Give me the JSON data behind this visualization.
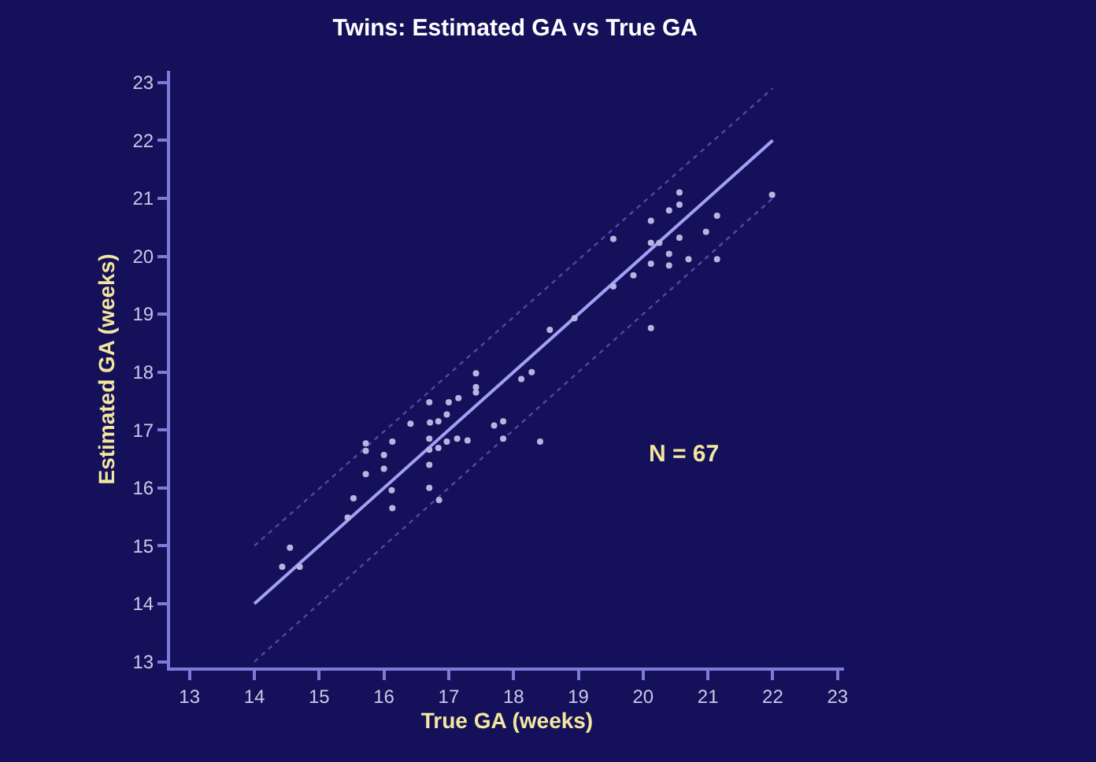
{
  "chart_data": {
    "type": "scatter",
    "title": "Twins: Estimated GA vs True GA",
    "xlabel": "True GA (weeks)",
    "ylabel": "Estimated GA (weeks)",
    "annotations": [
      "N = 67"
    ],
    "xlim": [
      12.7,
      23.1
    ],
    "ylim": [
      12.9,
      23.2
    ],
    "xticks": [
      13,
      14,
      15,
      16,
      17,
      18,
      19,
      20,
      21,
      22,
      23
    ],
    "yticks": [
      13,
      14,
      15,
      16,
      17,
      18,
      19,
      20,
      21,
      22,
      23
    ],
    "grid": false,
    "series": [
      {
        "marker": "circle",
        "color": "#b8b4e0",
        "x": [
          14.43,
          14.55,
          14.7,
          15.44,
          15.53,
          15.72,
          15.72,
          15.72,
          16.0,
          16.0,
          16.13,
          16.12,
          16.13,
          16.41,
          16.7,
          16.71,
          16.84,
          16.7,
          16.7,
          16.7,
          16.7,
          16.84,
          16.85,
          16.97,
          17.0,
          17.15,
          16.97,
          17.13,
          17.29,
          17.42,
          17.42,
          17.42,
          17.7,
          17.84,
          17.84,
          18.12,
          18.28,
          18.41,
          18.56,
          18.94,
          19.54,
          19.54,
          19.85,
          20.12,
          20.12,
          20.12,
          20.12,
          20.25,
          20.4,
          20.4,
          20.4,
          20.56,
          20.56,
          20.56,
          20.7,
          20.97,
          21.14,
          21.14,
          21.99
        ],
        "values": [
          14.64,
          14.97,
          14.64,
          15.49,
          15.82,
          16.77,
          16.64,
          16.24,
          16.33,
          16.57,
          16.8,
          15.96,
          15.65,
          17.11,
          17.48,
          17.13,
          17.15,
          16.85,
          16.66,
          16.4,
          16.0,
          16.69,
          15.79,
          17.27,
          17.48,
          17.55,
          16.8,
          16.85,
          16.82,
          17.98,
          17.74,
          17.65,
          17.08,
          17.15,
          16.85,
          17.88,
          18.0,
          16.8,
          18.73,
          18.93,
          20.3,
          19.48,
          19.67,
          20.61,
          19.87,
          20.23,
          18.76,
          20.23,
          20.79,
          20.04,
          19.84,
          21.1,
          20.89,
          20.32,
          19.95,
          20.42,
          20.7,
          19.95,
          21.06
        ]
      },
      {
        "type": "line",
        "color": "#a0a0f4",
        "line_style": "solid",
        "x": [
          14,
          22
        ],
        "values": [
          14,
          22
        ]
      },
      {
        "type": "line",
        "color": "#4a4aa8",
        "line_style": "dotted",
        "x": [
          14,
          22
        ],
        "values": [
          15,
          22.9
        ]
      },
      {
        "type": "line",
        "color": "#4a4aa8",
        "line_style": "dotted",
        "x": [
          14,
          22
        ],
        "values": [
          13,
          21
        ]
      }
    ]
  }
}
